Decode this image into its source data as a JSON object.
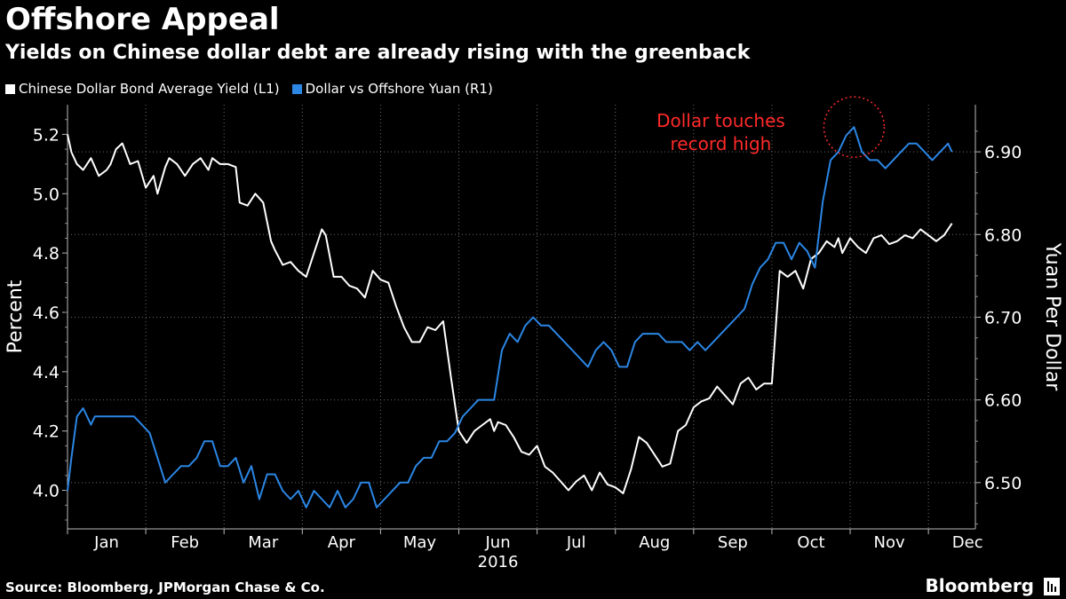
{
  "header": {
    "title": "Offshore Appeal",
    "subtitle": "Yields on Chinese dollar debt are already rising with the greenback"
  },
  "legend": [
    {
      "label": "Chinese Dollar Bond Average Yield (L1)",
      "color": "#ffffff"
    },
    {
      "label": "Dollar vs Offshore Yuan (R1)",
      "color": "#2b86e4"
    }
  ],
  "annotation": {
    "line1": "Dollar touches",
    "line2": "record high",
    "color": "#ff2a2a"
  },
  "footer": {
    "source": "Source: Bloomberg, JPMorgan Chase & Co.",
    "brand": "Bloomberg",
    "brand_icon": "terminal-icon"
  },
  "chart_data": {
    "type": "line",
    "title": "Offshore Appeal",
    "subtitle": "Yields on Chinese dollar debt are already rising with the greenback",
    "xlabel": "2016",
    "x_ticks": [
      "Jan",
      "Feb",
      "Mar",
      "Apr",
      "May",
      "Jun",
      "Jul",
      "Aug",
      "Sep",
      "Oct",
      "Nov",
      "Dec"
    ],
    "x_range": [
      0,
      11.6
    ],
    "left_axis": {
      "label": "Percent",
      "ylim": [
        3.87,
        5.3
      ],
      "ticks": [
        "4.0",
        "4.2",
        "4.4",
        "4.6",
        "4.8",
        "5.0",
        "5.2"
      ]
    },
    "right_axis": {
      "label": "Yuan Per Dollar",
      "ylim": [
        6.444,
        6.957
      ],
      "ticks": [
        "6.50",
        "6.60",
        "6.70",
        "6.80",
        "6.90"
      ]
    },
    "grid": true,
    "legend_position": "top-left",
    "series": [
      {
        "name": "Chinese Dollar Bond Average Yield (L1)",
        "axis": "left",
        "color": "#ffffff",
        "x": [
          0.0,
          0.05,
          0.12,
          0.2,
          0.3,
          0.4,
          0.5,
          0.55,
          0.62,
          0.7,
          0.8,
          0.9,
          1.0,
          1.1,
          1.15,
          1.25,
          1.3,
          1.4,
          1.5,
          1.6,
          1.7,
          1.8,
          1.85,
          1.95,
          2.05,
          2.15,
          2.2,
          2.3,
          2.4,
          2.5,
          2.6,
          2.65,
          2.75,
          2.85,
          2.95,
          3.05,
          3.15,
          3.25,
          3.3,
          3.4,
          3.5,
          3.6,
          3.7,
          3.8,
          3.9,
          4.0,
          4.1,
          4.2,
          4.3,
          4.4,
          4.5,
          4.6,
          4.7,
          4.8,
          4.9,
          5.0,
          5.1,
          5.2,
          5.3,
          5.4,
          5.45,
          5.5,
          5.6,
          5.7,
          5.8,
          5.9,
          6.0,
          6.1,
          6.2,
          6.3,
          6.4,
          6.5,
          6.6,
          6.7,
          6.8,
          6.9,
          7.0,
          7.1,
          7.2,
          7.3,
          7.4,
          7.5,
          7.6,
          7.7,
          7.8,
          7.9,
          8.0,
          8.1,
          8.2,
          8.3,
          8.4,
          8.5,
          8.6,
          8.7,
          8.8,
          8.9,
          9.0,
          9.1,
          9.2,
          9.3,
          9.4,
          9.5,
          9.6,
          9.7,
          9.8,
          9.85,
          9.9,
          10.0,
          10.1,
          10.2,
          10.3,
          10.4,
          10.5,
          10.6,
          10.7,
          10.8,
          10.9,
          11.0,
          11.1,
          11.2,
          11.3
        ],
        "values": [
          5.2,
          5.14,
          5.1,
          5.08,
          5.12,
          5.06,
          5.08,
          5.1,
          5.15,
          5.17,
          5.1,
          5.11,
          5.02,
          5.06,
          5.0,
          5.09,
          5.12,
          5.1,
          5.06,
          5.1,
          5.12,
          5.08,
          5.12,
          5.1,
          5.1,
          5.09,
          4.97,
          4.96,
          5.0,
          4.97,
          4.84,
          4.81,
          4.76,
          4.77,
          4.74,
          4.72,
          4.8,
          4.88,
          4.86,
          4.72,
          4.72,
          4.69,
          4.68,
          4.65,
          4.74,
          4.71,
          4.7,
          4.62,
          4.55,
          4.5,
          4.5,
          4.55,
          4.54,
          4.57,
          4.38,
          4.2,
          4.16,
          4.2,
          4.22,
          4.24,
          4.2,
          4.23,
          4.22,
          4.18,
          4.13,
          4.12,
          4.15,
          4.08,
          4.06,
          4.03,
          4.0,
          4.03,
          4.05,
          4.0,
          4.06,
          4.02,
          4.01,
          3.99,
          4.07,
          4.18,
          4.16,
          4.12,
          4.08,
          4.09,
          4.2,
          4.22,
          4.28,
          4.3,
          4.31,
          4.35,
          4.32,
          4.29,
          4.36,
          4.38,
          4.34,
          4.36,
          4.36,
          4.74,
          4.72,
          4.74,
          4.68,
          4.78,
          4.8,
          4.84,
          4.82,
          4.85,
          4.8,
          4.85,
          4.82,
          4.8,
          4.85,
          4.86,
          4.83,
          4.84,
          4.86,
          4.85,
          4.88,
          4.86,
          4.84,
          4.86,
          4.9
        ],
        "note": "x values are approximate month-positions (Jan = 0)"
      },
      {
        "name": "Dollar vs Offshore Yuan (R1)",
        "axis": "right",
        "color": "#2b86e4",
        "x": [
          0.0,
          0.05,
          0.12,
          0.2,
          0.3,
          0.35,
          0.45,
          0.55,
          0.65,
          0.75,
          0.85,
          0.95,
          1.05,
          1.15,
          1.25,
          1.35,
          1.45,
          1.55,
          1.65,
          1.75,
          1.85,
          1.95,
          2.05,
          2.15,
          2.25,
          2.35,
          2.45,
          2.55,
          2.65,
          2.75,
          2.85,
          2.95,
          3.05,
          3.15,
          3.25,
          3.35,
          3.45,
          3.55,
          3.65,
          3.75,
          3.85,
          3.95,
          4.05,
          4.15,
          4.25,
          4.35,
          4.45,
          4.55,
          4.65,
          4.75,
          4.85,
          4.95,
          5.05,
          5.15,
          5.25,
          5.35,
          5.45,
          5.55,
          5.65,
          5.75,
          5.85,
          5.95,
          6.05,
          6.15,
          6.25,
          6.35,
          6.45,
          6.55,
          6.65,
          6.75,
          6.85,
          6.95,
          7.05,
          7.15,
          7.25,
          7.35,
          7.45,
          7.55,
          7.65,
          7.75,
          7.85,
          7.95,
          8.05,
          8.15,
          8.25,
          8.35,
          8.45,
          8.55,
          8.65,
          8.75,
          8.85,
          8.95,
          9.05,
          9.15,
          9.25,
          9.35,
          9.45,
          9.55,
          9.65,
          9.75,
          9.85,
          9.95,
          10.05,
          10.15,
          10.25,
          10.35,
          10.45,
          10.55,
          10.65,
          10.75,
          10.85,
          10.95,
          11.05,
          11.15,
          11.25,
          11.3
        ],
        "values": [
          6.49,
          6.53,
          6.58,
          6.59,
          6.57,
          6.58,
          6.58,
          6.58,
          6.58,
          6.58,
          6.58,
          6.57,
          6.56,
          6.53,
          6.5,
          6.51,
          6.52,
          6.52,
          6.53,
          6.55,
          6.55,
          6.52,
          6.52,
          6.53,
          6.5,
          6.52,
          6.48,
          6.51,
          6.51,
          6.49,
          6.48,
          6.49,
          6.47,
          6.49,
          6.48,
          6.47,
          6.49,
          6.47,
          6.48,
          6.5,
          6.5,
          6.47,
          6.48,
          6.49,
          6.5,
          6.5,
          6.52,
          6.53,
          6.53,
          6.55,
          6.55,
          6.56,
          6.58,
          6.59,
          6.6,
          6.6,
          6.6,
          6.66,
          6.68,
          6.67,
          6.69,
          6.7,
          6.69,
          6.69,
          6.68,
          6.67,
          6.66,
          6.65,
          6.64,
          6.66,
          6.67,
          6.66,
          6.64,
          6.64,
          6.67,
          6.68,
          6.68,
          6.68,
          6.67,
          6.67,
          6.67,
          6.66,
          6.67,
          6.66,
          6.67,
          6.68,
          6.69,
          6.7,
          6.71,
          6.74,
          6.76,
          6.77,
          6.79,
          6.79,
          6.77,
          6.79,
          6.78,
          6.76,
          6.84,
          6.89,
          6.9,
          6.92,
          6.93,
          6.9,
          6.89,
          6.89,
          6.88,
          6.89,
          6.9,
          6.91,
          6.91,
          6.9,
          6.89,
          6.9,
          6.91,
          6.9
        ],
        "note": "x values are approximate month-positions (Jan = 0)"
      }
    ]
  }
}
